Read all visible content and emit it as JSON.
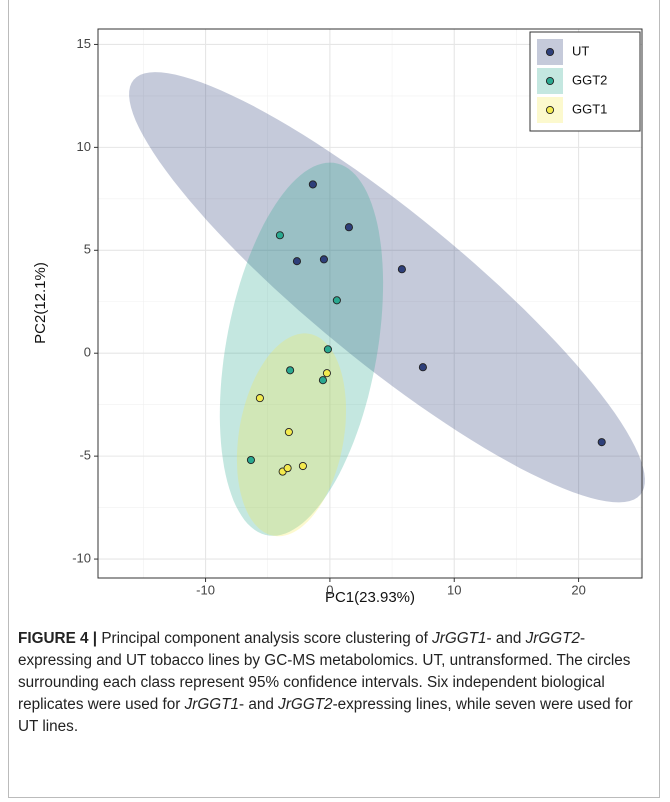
{
  "chart_data": {
    "type": "scatter",
    "xlabel": "PC1(23.93%)",
    "ylabel": "PC2(12.1%)",
    "xlim": [
      -18.65,
      25.1
    ],
    "ylim": [
      -10.92,
      15.75
    ],
    "xticks": [
      -10,
      0,
      10,
      20
    ],
    "yticks": [
      -10,
      -5,
      0,
      5,
      10,
      15
    ],
    "grid": true,
    "legend": "top-right",
    "series": [
      {
        "name": "UT",
        "color": "#2e3f7a",
        "x": [
          -1.37,
          1.53,
          -2.65,
          -0.48,
          5.79,
          7.48,
          21.86
        ],
        "values": [
          8.2,
          6.12,
          4.47,
          4.56,
          4.08,
          -0.68,
          -4.32
        ]
      },
      {
        "name": "GGT2",
        "color": "#2aa890",
        "x": [
          -4.02,
          0.56,
          -0.16,
          -3.2,
          -0.56,
          -6.35
        ],
        "values": [
          5.73,
          2.57,
          0.19,
          -0.83,
          -1.31,
          -5.19
        ]
      },
      {
        "name": "GGT1",
        "color": "#f3ea4e",
        "x": [
          -0.24,
          -5.63,
          -3.3,
          -3.8,
          -3.4,
          -2.17
        ],
        "values": [
          -0.97,
          -2.18,
          -3.83,
          -5.75,
          -5.58,
          -5.48
        ]
      }
    ]
  },
  "caption": [
    {
      "text": "FIGURE 4 |",
      "bold": true
    },
    {
      "text": " Principal component analysis score clustering of "
    },
    {
      "text": "JrGGT1",
      "italic": true
    },
    {
      "text": "- and "
    },
    {
      "text": "JrGGT2",
      "italic": true
    },
    {
      "text": "-expressing and UT tobacco lines by GC-MS metabolomics. UT, untransformed. The circles surrounding each class represent 95% confidence intervals. Six independent biological replicates were used for "
    },
    {
      "text": "JrGGT1",
      "italic": true
    },
    {
      "text": "- and "
    },
    {
      "text": "JrGGT2",
      "italic": true
    },
    {
      "text": "-expressing lines, while seven were used for UT lines."
    }
  ]
}
